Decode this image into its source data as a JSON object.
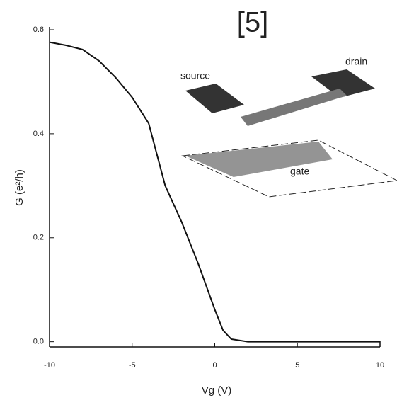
{
  "chart_data": {
    "type": "line",
    "title": "[5]",
    "x_label": "Vg (V)",
    "y_label": "G (e²/h)",
    "annotations": [
      "source",
      "drain",
      "gate"
    ],
    "series": [
      {
        "color": "#111111",
        "x": [
          -10,
          -9,
          -8,
          -7,
          -6,
          -5,
          -4,
          -3,
          -2,
          -1,
          0,
          0.5,
          1,
          2,
          5,
          10
        ],
        "values": [
          0.576,
          0.57,
          0.562,
          0.54,
          0.508,
          0.47,
          0.42,
          0.3,
          0.23,
          0.15,
          0.062,
          0.022,
          0.005,
          0,
          0,
          0
        ]
      }
    ],
    "xlim": [
      -10,
      10
    ],
    "xticks": [
      -10,
      -5,
      0,
      5,
      10
    ],
    "ylim": [
      -0.01,
      0.6
    ],
    "yticks": [
      {
        "value": 0,
        "label": "0.0"
      },
      0.2,
      0.4,
      0.6
    ]
  }
}
